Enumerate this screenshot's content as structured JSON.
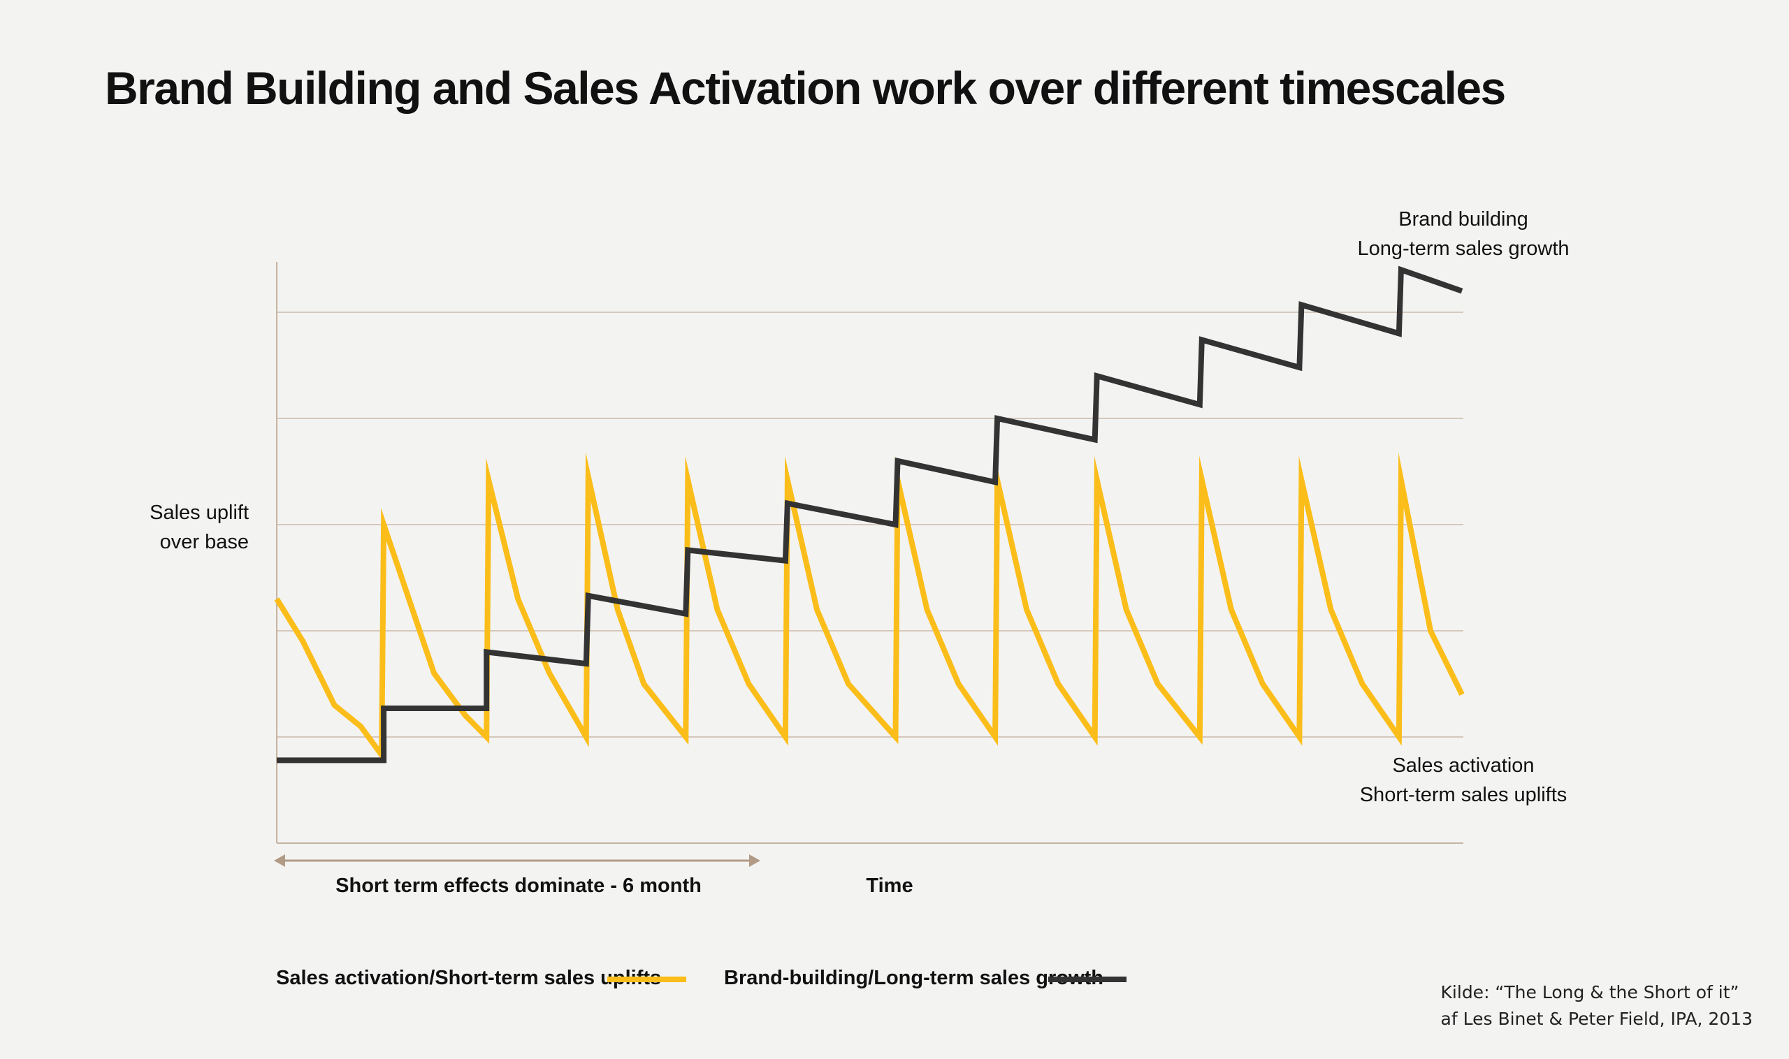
{
  "title": "Brand Building and Sales Activation work over different timescales",
  "colors": {
    "background": "#f3f3f2",
    "grid": "#cbb9a8",
    "axis": "#c6b3a0",
    "arrow": "#b19b86",
    "sales_activation": "#fbbd19",
    "brand_building": "#333333"
  },
  "chart_data": {
    "type": "line",
    "title": "Brand Building and Sales Activation work over different timescales",
    "xlabel": "Time",
    "ylabel": "Sales uplift over base",
    "ylim": [
      -1,
      4.5
    ],
    "xlim": [
      0,
      11.3
    ],
    "grid": true,
    "annotation": "Short term effects dominate - 6 month",
    "legend_position": "bottom",
    "series": [
      {
        "name": "Sales activation/Short-term sales uplifts",
        "end_label": [
          "Sales activation",
          "Short-term sales uplifts"
        ],
        "color": "#fbbd19",
        "points": [
          [
            0,
            1.3
          ],
          [
            0.25,
            0.9
          ],
          [
            0.55,
            0.3
          ],
          [
            0.8,
            0.1
          ],
          [
            1.0,
            -0.17
          ],
          [
            1.02,
            2.0
          ],
          [
            1.5,
            0.6
          ],
          [
            1.8,
            0.2
          ],
          [
            2.0,
            0
          ],
          [
            2.02,
            2.42
          ],
          [
            2.3,
            1.3
          ],
          [
            2.6,
            0.6
          ],
          [
            2.95,
            0
          ],
          [
            2.97,
            2.45
          ],
          [
            3.25,
            1.2
          ],
          [
            3.5,
            0.5
          ],
          [
            3.9,
            0
          ],
          [
            3.92,
            2.42
          ],
          [
            4.2,
            1.2
          ],
          [
            4.5,
            0.5
          ],
          [
            4.85,
            0
          ],
          [
            4.87,
            2.42
          ],
          [
            5.15,
            1.2
          ],
          [
            5.45,
            0.5
          ],
          [
            5.9,
            0
          ],
          [
            5.92,
            2.42
          ],
          [
            6.2,
            1.2
          ],
          [
            6.5,
            0.5
          ],
          [
            6.85,
            0
          ],
          [
            6.87,
            2.42
          ],
          [
            7.15,
            1.2
          ],
          [
            7.45,
            0.5
          ],
          [
            7.8,
            0
          ],
          [
            7.82,
            2.42
          ],
          [
            8.1,
            1.2
          ],
          [
            8.4,
            0.5
          ],
          [
            8.8,
            0
          ],
          [
            8.82,
            2.42
          ],
          [
            9.1,
            1.2
          ],
          [
            9.4,
            0.5
          ],
          [
            9.75,
            0
          ],
          [
            9.77,
            2.42
          ],
          [
            10.05,
            1.2
          ],
          [
            10.35,
            0.5
          ],
          [
            10.7,
            0
          ],
          [
            10.72,
            2.42
          ],
          [
            11.0,
            1.0
          ],
          [
            11.3,
            0.4
          ]
        ]
      },
      {
        "name": "Brand-building/Long-term sales growth",
        "end_label": [
          "Brand building",
          "Long-term sales growth"
        ],
        "color": "#333333",
        "points": [
          [
            0,
            -0.22
          ],
          [
            1.02,
            -0.22
          ],
          [
            1.02,
            0.27
          ],
          [
            2.0,
            0.27
          ],
          [
            2.0,
            0.8
          ],
          [
            2.95,
            0.69
          ],
          [
            2.97,
            1.33
          ],
          [
            3.9,
            1.16
          ],
          [
            3.92,
            1.76
          ],
          [
            4.85,
            1.66
          ],
          [
            4.87,
            2.2
          ],
          [
            5.9,
            2.0
          ],
          [
            5.92,
            2.6
          ],
          [
            6.85,
            2.4
          ],
          [
            6.87,
            3.0
          ],
          [
            7.8,
            2.8
          ],
          [
            7.82,
            3.4
          ],
          [
            8.8,
            3.13
          ],
          [
            8.82,
            3.74
          ],
          [
            9.75,
            3.48
          ],
          [
            9.77,
            4.07
          ],
          [
            10.7,
            3.8
          ],
          [
            10.72,
            4.4
          ],
          [
            11.3,
            4.2
          ]
        ]
      }
    ]
  },
  "labels": {
    "y_axis_line1": "Sales uplift",
    "y_axis_line2": "over base",
    "brand_line1": "Brand building",
    "brand_line2": "Long-term sales growth",
    "activation_line1": "Sales activation",
    "activation_line2": "Short-term sales uplifts",
    "short_term": "Short term effects dominate - 6 month",
    "time": "Time"
  },
  "legend": {
    "sales_activation": "Sales activation/Short-term sales uplifts",
    "brand_building": "Brand-building/Long-term sales growth"
  },
  "source": {
    "line1": "Kilde: “The Long & the Short of it”",
    "line2": "af Les Binet & Peter Field, IPA, 2013"
  }
}
